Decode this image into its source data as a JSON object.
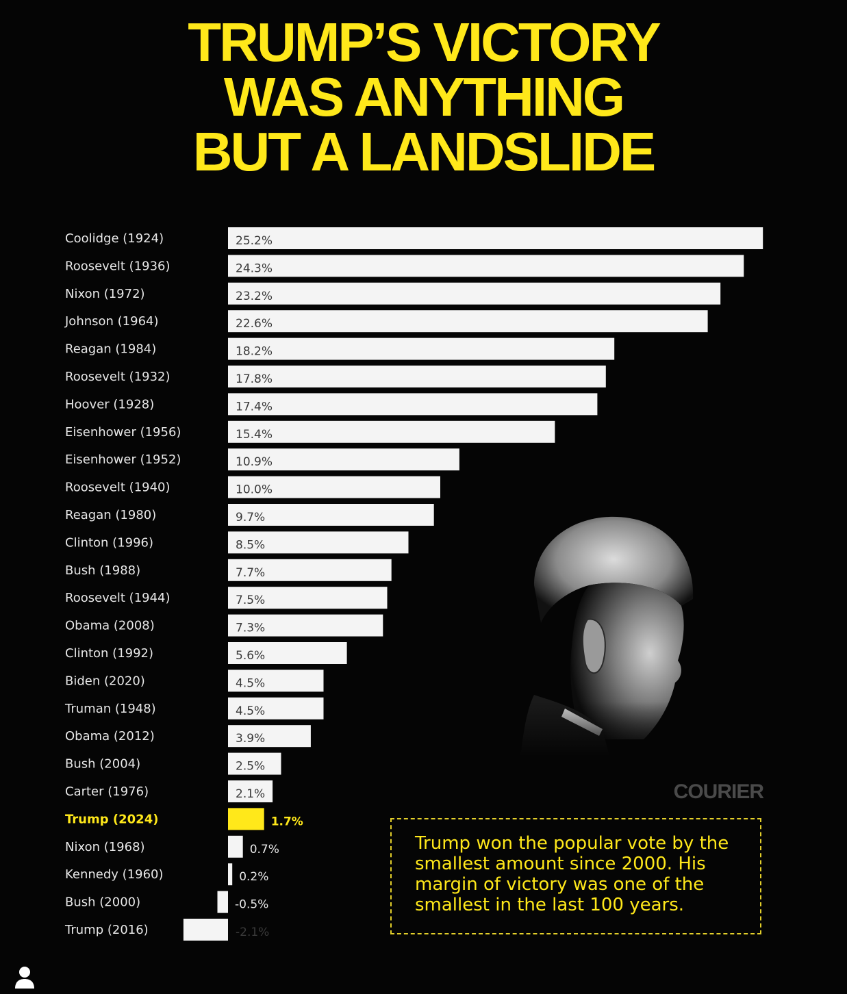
{
  "headline": {
    "lines": [
      "TRUMP’S VICTORY",
      "WAS ANYTHING",
      "BUT A LANDSLIDE"
    ]
  },
  "chart_data": {
    "type": "bar",
    "orientation": "horizontal",
    "title": "TRUMP’S VICTORY WAS ANYTHING BUT A LANDSLIDE",
    "xlabel": "",
    "ylabel": "",
    "xlim": [
      -2.1,
      25.2
    ],
    "grid": false,
    "value_labels": [
      "25.2%",
      "24.3%",
      "23.2%",
      "22.6%",
      "18.2%",
      "17.8%",
      "17.4%",
      "15.4%",
      "10.9%",
      "10.0%",
      "9.7%",
      "8.5%",
      "7.7%",
      "7.5%",
      "7.3%",
      "5.6%",
      "4.5%",
      "4.5%",
      "3.9%",
      "2.5%",
      "2.1%",
      "1.7%",
      "0.7%",
      "0.2%",
      "-0.5%",
      "-2.1%"
    ],
    "categories": [
      "Coolidge (1924)",
      "Roosevelt (1936)",
      "Nixon (1972)",
      "Johnson (1964)",
      "Reagan (1984)",
      "Roosevelt (1932)",
      "Hoover (1928)",
      "Eisenhower (1956)",
      "Eisenhower (1952)",
      "Roosevelt (1940)",
      "Reagan (1980)",
      "Clinton (1996)",
      "Bush (1988)",
      "Roosevelt (1944)",
      "Obama (2008)",
      "Clinton (1992)",
      "Biden (2020)",
      "Truman (1948)",
      "Obama (2012)",
      "Bush (2004)",
      "Carter (1976)",
      "Trump (2024)",
      "Nixon (1968)",
      "Kennedy (1960)",
      "Bush (2000)",
      "Trump (2016)"
    ],
    "values": [
      25.2,
      24.3,
      23.2,
      22.6,
      18.2,
      17.8,
      17.4,
      15.4,
      10.9,
      10.0,
      9.7,
      8.5,
      7.7,
      7.5,
      7.3,
      5.6,
      4.5,
      4.5,
      3.9,
      2.5,
      2.1,
      1.7,
      0.7,
      0.2,
      -0.5,
      -2.1
    ],
    "highlight": "Trump (2024)",
    "colors": {
      "bar": "#f4f4f4",
      "highlight": "#ffe81a",
      "label": "#e8e8e8",
      "value_inside": "#3a3a3a",
      "value_outside": "#e8e8e8"
    }
  },
  "brand": {
    "name": "COURIER"
  },
  "callout": {
    "text": "Trump won the popular vote by the smallest amount since 2000. His margin of victory was one of the smallest in the last 100 years."
  },
  "colors": {
    "background": "#050505",
    "accent": "#ffe81a",
    "brand": "#4a4a4a"
  },
  "icons": {
    "portrait": "portrait-photo",
    "profile": "user-profile-icon"
  }
}
